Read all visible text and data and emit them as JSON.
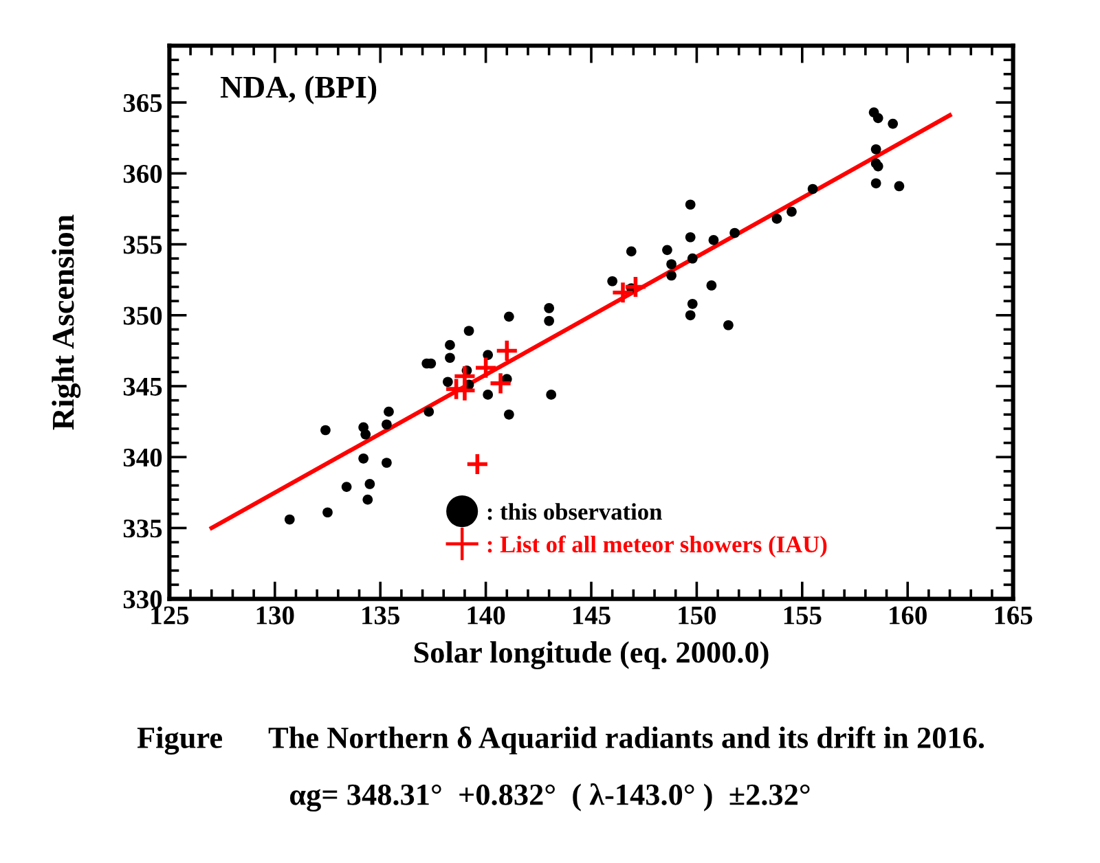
{
  "chart_data": {
    "type": "scatter",
    "title": "NDA, (BPI)",
    "xlabel": "Solar longitude (eq. 2000.0)",
    "ylabel": "Right Ascension",
    "annotations": [
      "Figure      The Northern δ Aquariid radiants and its drift in 2016.",
      "αg= 348.31°  +0.832°  ( λ-143.0° )  ±2.32°"
    ],
    "xlim": [
      125,
      165
    ],
    "xticks": [
      125,
      130,
      135,
      140,
      145,
      150,
      155,
      160,
      165
    ],
    "ylim": [
      330,
      369
    ],
    "yticks": [
      330,
      335,
      340,
      345,
      350,
      355,
      360,
      365
    ],
    "legend": "bottom right",
    "series": [
      {
        "type": "line",
        "color": "#ff0000",
        "marker": "none",
        "line_style": "solid",
        "x": [
          127,
          162
        ],
        "values": [
          335.0,
          364.1
        ]
      },
      {
        "name": ": this observation",
        "color": "#000000",
        "marker": "circle",
        "x": [
          130.7,
          132.5,
          132.4,
          133.4,
          134.2,
          134.3,
          134.2,
          134.5,
          134.4,
          135.3,
          135.3,
          135.4,
          137.3,
          137.2,
          137.4,
          138.3,
          138.3,
          138.2,
          139.2,
          139.1,
          139.2,
          140.1,
          140.1,
          141.0,
          141.1,
          141.1,
          143.0,
          143.0,
          143.1,
          146.0,
          146.9,
          146.9,
          148.6,
          148.8,
          148.8,
          149.7,
          149.7,
          149.8,
          149.8,
          149.7,
          150.7,
          150.8,
          151.8,
          151.5,
          153.8,
          154.5,
          155.5,
          158.4,
          158.6,
          159.3,
          158.5,
          158.5,
          158.6,
          158.5,
          159.6
        ],
        "values": [
          335.6,
          336.1,
          341.9,
          337.9,
          342.1,
          341.6,
          339.9,
          338.1,
          337.0,
          339.6,
          342.3,
          343.2,
          343.2,
          346.6,
          346.6,
          347.9,
          347.0,
          345.3,
          348.9,
          346.1,
          345.1,
          347.2,
          344.4,
          345.5,
          343.0,
          349.9,
          350.5,
          349.6,
          344.4,
          352.4,
          354.5,
          351.9,
          354.6,
          353.6,
          352.8,
          357.8,
          355.5,
          354.0,
          350.8,
          350.0,
          352.1,
          355.3,
          355.8,
          349.3,
          356.8,
          357.3,
          358.9,
          364.3,
          363.9,
          363.5,
          361.7,
          360.7,
          360.5,
          359.3,
          359.1
        ]
      },
      {
        "name": ": List of all meteor showers (IAU)",
        "color": "#ff0000",
        "marker": "cross",
        "x": [
          138.6,
          139.0,
          139.0,
          140.0,
          140.7,
          141.0,
          139.6,
          146.5,
          147.1
        ],
        "values": [
          344.8,
          345.7,
          344.7,
          346.3,
          345.2,
          347.5,
          339.5,
          351.6,
          352.0
        ]
      }
    ]
  }
}
